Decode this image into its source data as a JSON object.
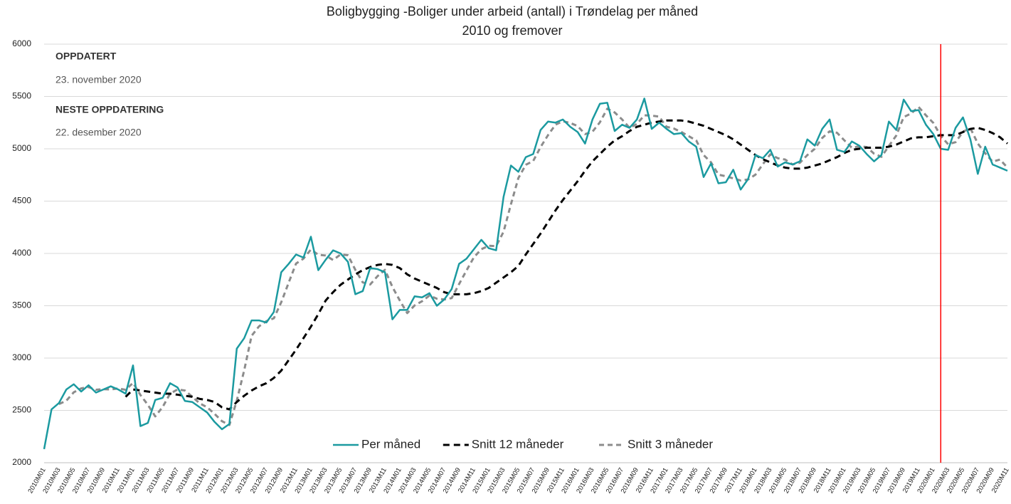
{
  "chart_data": {
    "type": "line",
    "title": "Boligbygging -Boliger under arbeid (antall)  i Trøndelag per måned",
    "subtitle": "2010 og  fremover",
    "annotations": [
      {
        "text": "OPPDATERT",
        "bold": true
      },
      {
        "text": "23. november 2020",
        "bold": false
      },
      {
        "text": "NESTE OPPDATERING",
        "bold": true
      },
      {
        "text": "22. desember 2020",
        "bold": false
      }
    ],
    "categories": [
      "2010M01",
      null,
      "2010M03",
      null,
      "2010M05",
      null,
      "2010M07",
      null,
      "2010M09",
      null,
      "2010M11",
      null,
      "2011M01",
      null,
      "2011M03",
      null,
      "2011M05",
      null,
      "2011M07",
      null,
      "2011M09",
      null,
      "2011M11",
      null,
      "2012M01",
      null,
      "2012M03",
      null,
      "2012M05",
      null,
      "2012M07",
      null,
      "2012M09",
      null,
      "2012M11",
      null,
      "2013M01",
      null,
      "2013M03",
      null,
      "2013M05",
      null,
      "2013M07",
      null,
      "2013M09",
      null,
      "2013M11",
      null,
      "2014M01",
      null,
      "2014M03",
      null,
      "2014M05",
      null,
      "2014M07",
      null,
      "2014M09",
      null,
      "2014M11",
      null,
      "2015M01",
      null,
      "2015M03",
      null,
      "2015M05",
      null,
      "2015M07",
      null,
      "2015M09",
      null,
      "2015M11",
      null,
      "2016M01",
      null,
      "2016M03",
      null,
      "2016M05",
      null,
      "2016M07",
      null,
      "2016M09",
      null,
      "2016M11",
      null,
      "2017M01",
      null,
      "2017M03",
      null,
      "2017M05",
      null,
      "2017M07",
      null,
      "2017M09",
      null,
      "2017M11",
      null,
      "2018M01",
      null,
      "2018M03",
      null,
      "2018M05",
      null,
      "2018M07",
      null,
      "2018M09",
      null,
      "2018M11",
      null,
      "2019M01",
      null,
      "2019M03",
      null,
      "2019M05",
      null,
      "2019M07",
      null,
      "2019M09",
      null,
      "2019M11",
      null,
      "2020M01",
      null,
      "2020M03",
      null,
      "2020M05",
      null,
      "2020M07",
      null,
      "2020M09",
      null,
      "2020M11"
    ],
    "series": [
      {
        "name": "Per måned",
        "color": "#1b9aa0",
        "dash": "solid",
        "values": [
          2130,
          2510,
          2570,
          2700,
          2750,
          2680,
          2740,
          2670,
          2700,
          2730,
          2700,
          2660,
          2930,
          2350,
          2380,
          2600,
          2620,
          2760,
          2720,
          2590,
          2580,
          2530,
          2480,
          2390,
          2320,
          2370,
          3090,
          3190,
          3360,
          3360,
          3340,
          3440,
          3820,
          3900,
          3990,
          3960,
          4160,
          3840,
          3940,
          4030,
          4000,
          3920,
          3610,
          3640,
          3860,
          3850,
          3820,
          3370,
          3460,
          3460,
          3590,
          3580,
          3620,
          3500,
          3560,
          3660,
          3900,
          3950,
          4040,
          4130,
          4050,
          4030,
          4540,
          4840,
          4780,
          4920,
          4950,
          5180,
          5260,
          5250,
          5280,
          5210,
          5160,
          5050,
          5280,
          5430,
          5440,
          5170,
          5230,
          5200,
          5280,
          5480,
          5190,
          5250,
          5190,
          5140,
          5150,
          5070,
          5020,
          4730,
          4860,
          4670,
          4680,
          4800,
          4610,
          4710,
          4940,
          4910,
          4990,
          4830,
          4870,
          4850,
          4880,
          5090,
          5030,
          5190,
          5280,
          4990,
          4970,
          5070,
          5030,
          4950,
          4880,
          4940,
          5260,
          5180,
          5470,
          5360,
          5370,
          5230,
          5140,
          5000,
          4990,
          5200,
          5300,
          5090,
          4760,
          5020,
          4850,
          4820,
          4790
        ]
      },
      {
        "name": "Snitt 12 måneder",
        "color": "#000000",
        "dash": "dashed",
        "values": [
          null,
          null,
          null,
          null,
          null,
          null,
          null,
          null,
          null,
          null,
          null,
          2630,
          2700,
          2690,
          2680,
          2670,
          2660,
          2660,
          2650,
          2640,
          2630,
          2610,
          2600,
          2580,
          2530,
          2510,
          2580,
          2640,
          2690,
          2730,
          2760,
          2810,
          2880,
          2980,
          3080,
          3190,
          3300,
          3420,
          3550,
          3630,
          3700,
          3750,
          3800,
          3840,
          3870,
          3890,
          3900,
          3890,
          3860,
          3800,
          3760,
          3730,
          3700,
          3670,
          3630,
          3610,
          3610,
          3610,
          3620,
          3640,
          3670,
          3720,
          3770,
          3820,
          3880,
          3990,
          4090,
          4190,
          4300,
          4410,
          4510,
          4600,
          4690,
          4790,
          4880,
          4950,
          5020,
          5080,
          5120,
          5170,
          5210,
          5230,
          5250,
          5260,
          5270,
          5270,
          5270,
          5260,
          5240,
          5220,
          5190,
          5160,
          5130,
          5090,
          5040,
          4990,
          4940,
          4900,
          4870,
          4840,
          4820,
          4810,
          4810,
          4820,
          4840,
          4860,
          4890,
          4920,
          4960,
          4990,
          5000,
          5010,
          5010,
          5010,
          5020,
          5040,
          5070,
          5100,
          5110,
          5110,
          5120,
          5130,
          5130,
          5130,
          5160,
          5190,
          5200,
          5180,
          5150,
          5110,
          5050
        ]
      },
      {
        "name": "Snitt 3 måneder",
        "color": "#8c8c8c",
        "dash": "dashed",
        "values": [
          null,
          null,
          2560,
          2593,
          2673,
          2710,
          2723,
          2697,
          2703,
          2700,
          2710,
          2697,
          2763,
          2647,
          2553,
          2443,
          2533,
          2660,
          2700,
          2690,
          2630,
          2567,
          2530,
          2467,
          2397,
          2360,
          2593,
          2883,
          3213,
          3303,
          3353,
          3380,
          3533,
          3720,
          3903,
          3950,
          4037,
          3987,
          3980,
          3937,
          3990,
          3983,
          3843,
          3723,
          3703,
          3783,
          3843,
          3680,
          3550,
          3430,
          3503,
          3543,
          3597,
          3567,
          3560,
          3573,
          3707,
          3837,
          3963,
          4040,
          4073,
          4070,
          4207,
          4470,
          4720,
          4847,
          4883,
          5017,
          5130,
          5230,
          5263,
          5247,
          5217,
          5140,
          5163,
          5253,
          5383,
          5347,
          5280,
          5200,
          5237,
          5320,
          5317,
          5307,
          5210,
          5193,
          5160,
          5120,
          5080,
          4940,
          4870,
          4753,
          4737,
          4717,
          4697,
          4707,
          4753,
          4853,
          4947,
          4910,
          4897,
          4850,
          4867,
          4940,
          5000,
          5103,
          5167,
          5153,
          5080,
          5010,
          5023,
          5017,
          4953,
          4923,
          5027,
          5127,
          5303,
          5337,
          5400,
          5320,
          5247,
          5123,
          5043,
          5063,
          5163,
          5197,
          5050,
          4957,
          4877,
          4897,
          4820
        ]
      }
    ],
    "reference_line": {
      "index": 121,
      "color": "#ff0000"
    },
    "ylim": [
      2000,
      6000
    ],
    "yticks": [
      2000,
      2500,
      3000,
      3500,
      4000,
      4500,
      5000,
      5500,
      6000
    ],
    "grid": true,
    "legend": "bottom"
  }
}
